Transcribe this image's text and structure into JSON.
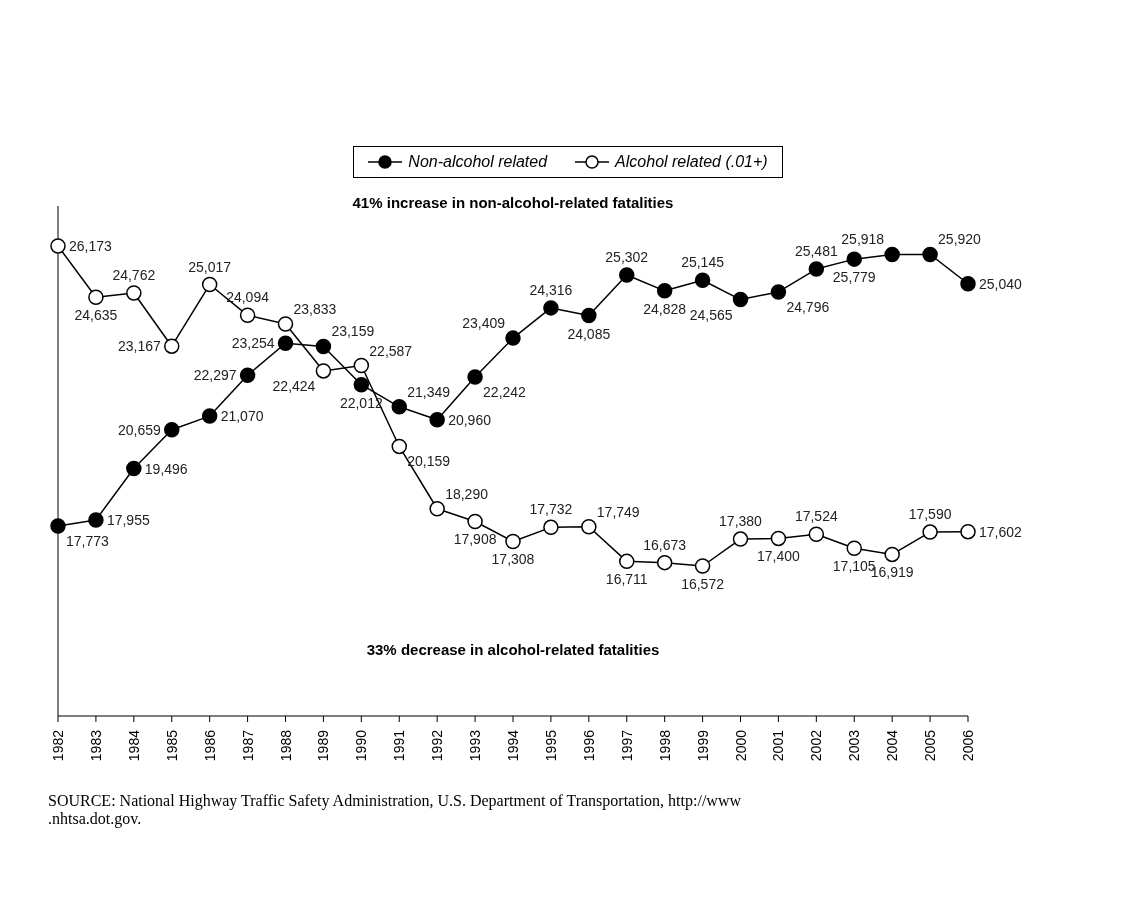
{
  "chart_data": {
    "type": "line",
    "categories": [
      "1982",
      "1983",
      "1984",
      "1985",
      "1986",
      "1987",
      "1988",
      "1989",
      "1990",
      "1991",
      "1992",
      "1993",
      "1994",
      "1995",
      "1996",
      "1997",
      "1998",
      "1999",
      "2000",
      "2001",
      "2002",
      "2003",
      "2004",
      "2005",
      "2006"
    ],
    "series": [
      {
        "name": "Non-alcohol related",
        "color": "#000000",
        "values": [
          17773,
          17955,
          19496,
          20659,
          21070,
          22297,
          23254,
          23159,
          22012,
          21349,
          20960,
          22242,
          23409,
          24316,
          24085,
          25302,
          24828,
          25145,
          24565,
          24796,
          25481,
          25779,
          25918,
          25920,
          25040
        ],
        "value_labels": [
          "17,773",
          "17,955",
          "19,496",
          "20,659",
          "21,070",
          "22,297",
          "23,254",
          "23,159",
          "22,012",
          "21,349",
          "20,960",
          "22,242",
          "23,409",
          "24,316",
          "24,085",
          "25,302",
          "24,828",
          "25,145",
          "24,565",
          "24,796",
          "25,481",
          "25,779",
          "25,918",
          "25,920",
          "25,040"
        ]
      },
      {
        "name": "Alcohol related (.01+)",
        "color": "#000000",
        "values": [
          26173,
          24635,
          24762,
          23167,
          25017,
          24094,
          23833,
          22424,
          22587,
          20159,
          18290,
          17908,
          17308,
          17732,
          17749,
          16711,
          16673,
          16572,
          17380,
          17400,
          17524,
          17105,
          16919,
          17590,
          17602
        ],
        "value_labels": [
          "26,173",
          "24,635",
          "24,762",
          "23,167",
          "25,017",
          "24,094",
          "23,833",
          "22,424",
          "22,587",
          "20,159",
          "18,290",
          "17,908",
          "17,308",
          "17,732",
          "17,749",
          "16,711",
          "16,673",
          "16,572",
          "17,380",
          "17,400",
          "17,524",
          "17,105",
          "16,919",
          "17,590",
          "17,602"
        ]
      }
    ],
    "annotations": [
      "41% increase in non-alcohol-related fatalities",
      "33% decrease in alcohol-related fatalities",
      "SOURCE: National Highway Traffic Safety Administration, U.S. Department of Transportation, http://www .nhtsa.dot.gov."
    ],
    "tick_labels": "x",
    "legend": "top",
    "marker": "circle"
  }
}
